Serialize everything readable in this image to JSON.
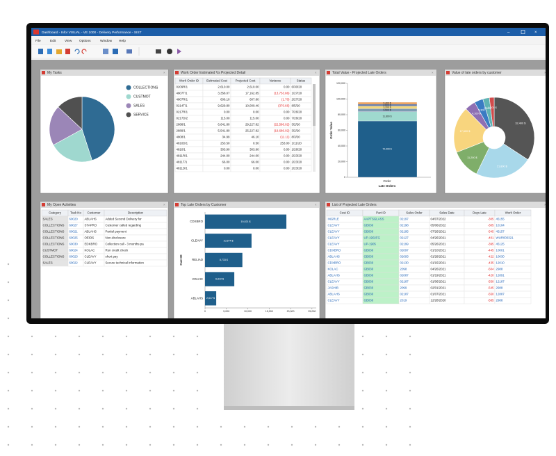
{
  "window": {
    "title": "Dashboard - Infor VISUAL - VE 1000 - Delivery Performance - SIST",
    "menu": [
      "File",
      "Edit",
      "View",
      "Options",
      "Window",
      "Help"
    ]
  },
  "my_tasks": {
    "title": "My Tasks",
    "type": "pie",
    "categories": [
      "COLLECTIONS",
      "CUSTMOT",
      "SALES",
      "SERVICE"
    ],
    "values": [
      45,
      22,
      20,
      13
    ],
    "colors": [
      "#2f6b93",
      "#9fd8cf",
      "#9b86b7",
      "#505050"
    ]
  },
  "work_orders": {
    "title": "Work Order Estimated Vs Projected Detail",
    "columns": [
      "Work Order ID",
      "Estimated Cost",
      "Projected Cost",
      "Variance",
      "Status"
    ],
    "rows": [
      [
        "0209R/1",
        "2,610.00",
        "2,610.00",
        "0.00",
        "6/30/20"
      ],
      [
        "4807T/1",
        "3,358.07",
        "17,162.85",
        "(13,753.86)",
        "1/27/20"
      ],
      [
        "4807R/1",
        "606.10",
        "607.80",
        "(1.70)",
        "2/27/20"
      ],
      [
        "0214T/1",
        "9,629.80",
        "10,000.46",
        "(370.66)",
        "8/5/20"
      ],
      [
        "0217R/1",
        "0.00",
        "0.00",
        "0.00",
        "7/26/20"
      ],
      [
        "0217D/2",
        "115.00",
        "115.00",
        "0.00",
        "7/26/20"
      ],
      [
        "2888/1",
        "6,641.80",
        "29,227.82",
        "(22,586.02)",
        "3/2/20"
      ],
      [
        "2889/1",
        "5,541.80",
        "25,227.82",
        "(19,686.02)",
        "3/2/20"
      ],
      [
        "4808/1",
        "34.99",
        "46.10",
        "(11.11)",
        "8/3/20"
      ],
      [
        "4810D/1",
        "253.50",
        "0.50",
        "253.00",
        "1/11/20"
      ],
      [
        "4810/1",
        "303.90",
        "303.90",
        "0.00",
        "1/26/20"
      ],
      [
        "4811R/1",
        "244.00",
        "244.00",
        "0.00",
        "2/23/20"
      ],
      [
        "4811T/1",
        "66.00",
        "66.00",
        "0.00",
        "2/23/20"
      ],
      [
        "4811D/1",
        "0.00",
        "0.00",
        "0.00",
        "2/23/20"
      ]
    ]
  },
  "total_value": {
    "title": "Total Value - Projected Late Orders",
    "type": "stacked-bar",
    "category": "Order",
    "x_label": "Late Orders",
    "y_label": "Order Value",
    "values": [
      72000,
      11800,
      3900,
      3200,
      2600,
      2400
    ],
    "value_labels": [
      "72,000 $",
      "11,800 $",
      "3,900 $",
      "3,200 $",
      "2,600 $",
      "2,400 $"
    ],
    "colors": [
      "#1f5f8b",
      "#9fd9cf",
      "#7d9bb3",
      "#f3d77a",
      "#6c7fa6",
      "#e8964a"
    ],
    "ylim": [
      0,
      120000
    ],
    "yticks": [
      0,
      {
        "value": 20000,
        "label": "20,000"
      },
      {
        "value": 40000,
        "label": "40,000"
      },
      {
        "value": 60000,
        "label": "60,000"
      },
      {
        "value": 80000,
        "label": "80,000"
      },
      {
        "value": 100000,
        "label": "100,000"
      },
      {
        "value": 120000,
        "label": "120,000"
      }
    ]
  },
  "late_by_customer": {
    "title": "Value of late orders by customer",
    "type": "donut",
    "values": [
      32400,
      21800,
      11200,
      17600,
      4100,
      3300,
      2500,
      1800
    ],
    "value_labels": [
      "32,400 $",
      "21,800 $",
      "11,200 $",
      "17,600 $",
      "4,100 $",
      "3,300 $",
      "2,500 $",
      "1,800 $"
    ],
    "colors": [
      "#555555",
      "#a8d8ea",
      "#7fae6a",
      "#f8d57e",
      "#8e6fb3",
      "#3a7cc3",
      "#5fb3b3",
      "#d24b4b"
    ]
  },
  "open_activities": {
    "title": "My Open Activities",
    "columns": [
      "Category",
      "Task No",
      "Customer",
      "Description"
    ],
    "rows": [
      [
        "SALES",
        "60020",
        "ABLAHS",
        "Added Second Delivery for"
      ],
      [
        "COLLECTIONS",
        "60027",
        "STAPRO",
        "Customer called regarding"
      ],
      [
        "COLLECTIONS",
        "60021",
        "ABLAHS",
        "Partial payment"
      ],
      [
        "COLLECTIONS",
        "60025",
        "OEIDS",
        "Non-disclosure"
      ],
      [
        "COLLECTIONS",
        "60030",
        "EDKBRO",
        "Collection call - 3 months pa"
      ],
      [
        "CUSTMOT",
        "60024",
        "KOLAC",
        "Run credit check"
      ],
      [
        "COLLECTIONS",
        "60023",
        "CLEAVY",
        "short pay"
      ],
      [
        "SALES",
        "60022",
        "CLEAVY",
        "Secure technical information"
      ]
    ]
  },
  "top_late": {
    "title": "Top Late Orders by Customer",
    "type": "hbar",
    "y_label": "Cust ID",
    "categories": [
      "CDXBRO",
      "CLEAVY",
      "RELIAD",
      "VOLVIC",
      "ABLAHS"
    ],
    "values": [
      19021,
      10874,
      8733,
      6842,
      2617
    ],
    "value_labels": [
      "19,021 $",
      "10,874 $",
      "8,733 $",
      "6,842 $",
      "2,617 $"
    ],
    "color": "#1f5f8b",
    "xlim": [
      0,
      26000
    ],
    "xticks": [
      0,
      {
        "value": 5000,
        "label": "5,000"
      },
      {
        "value": 10000,
        "label": "10,000"
      },
      {
        "value": 15000,
        "label": "15,000"
      },
      {
        "value": 20000,
        "label": "20,000"
      },
      {
        "value": 25000,
        "label": "25,000"
      }
    ]
  },
  "late_orders": {
    "title": "List of Projected Late Orders",
    "columns": [
      "Cust ID",
      "Part ID",
      "Sales Order",
      "Sales Date",
      "Days Late",
      "Work Order"
    ],
    "rows": [
      [
        "INGRLE",
        "AAPTSGLASS",
        "02197",
        "04/07/2022",
        "-305",
        "45155"
      ],
      [
        "CLEAVY",
        "GB030",
        "02198",
        "05/06/2022",
        "-305",
        "10104"
      ],
      [
        "CLEAVY",
        "GB030",
        "02195",
        "07/26/2021",
        "-545",
        "45157"
      ],
      [
        "CLEAVY",
        "UP-1902FG",
        "02127",
        "04/26/2021",
        "-401",
        "WUR000321"
      ],
      [
        "CLEAVY",
        "UP-1905",
        "02199",
        "05/26/2021",
        "-395",
        "45125"
      ],
      [
        "CDXBRO",
        "GB030",
        "02097",
        "01/10/2021",
        "-445",
        "10001"
      ],
      [
        "ABLAHS",
        "GB030",
        "02093",
        "01/28/2021",
        "-422",
        "10030"
      ],
      [
        "CDXBRO",
        "GB030",
        "02130",
        "01/15/2021",
        "-435",
        "12010"
      ],
      [
        "KOLAC",
        "GB030",
        "2098",
        "04/26/2021",
        "-504",
        "2988"
      ],
      [
        "ABLAHS",
        "GB030",
        "02087",
        "01/19/2021",
        "-420",
        "12891"
      ],
      [
        "CLEAVY",
        "GB030",
        "02187",
        "01/06/2021",
        "-550",
        "12187"
      ],
      [
        "JASHIB",
        "GB030",
        "2099",
        "02/01/2021",
        "-545",
        "2988"
      ],
      [
        "ABLAHS",
        "GB030",
        "02187",
        "01/07/2021",
        "-550",
        "12887"
      ],
      [
        "CLEAVY",
        "GB030",
        "2019",
        "12/28/2020",
        "-585",
        "2988"
      ]
    ]
  }
}
